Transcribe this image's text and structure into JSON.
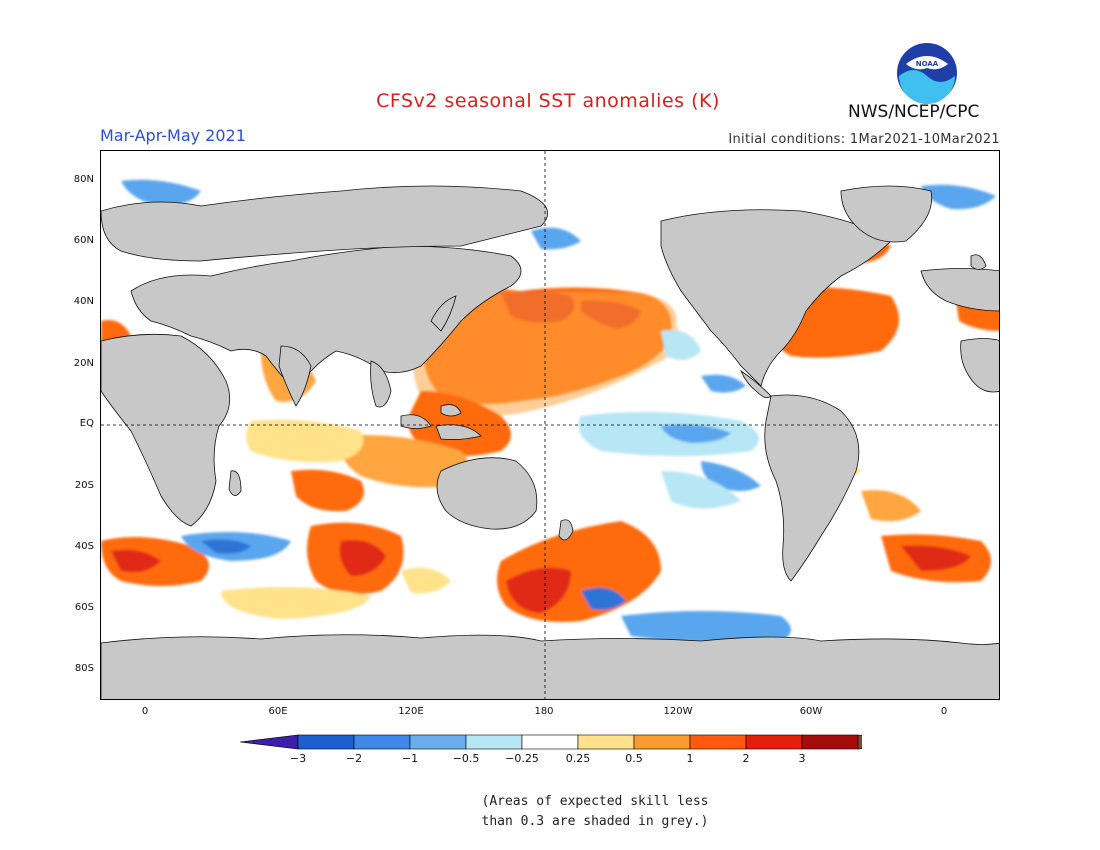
{
  "title": "CFSv2 seasonal SST anomalies (K)",
  "period": "Mar-Apr-May 2021",
  "initial_conditions": "Initial conditions: 1Mar2021-10Mar2021",
  "agency": "NWS/NCEP/CPC",
  "logo": {
    "icon": "noaa-logo",
    "text": "NOAA"
  },
  "lat_labels": [
    "80N",
    "60N",
    "40N",
    "20N",
    "EQ",
    "20S",
    "40S",
    "60S",
    "80S"
  ],
  "lon_labels": [
    "0",
    "60E",
    "120E",
    "180",
    "120W",
    "60W",
    "0"
  ],
  "colorbar": {
    "labels": [
      "-3",
      "-2",
      "-1",
      "-0.5",
      "-0.25",
      "0.25",
      "0.5",
      "1",
      "2",
      "3"
    ],
    "colors": [
      "#3b1fa8",
      "#1c5fd1",
      "#3d88e8",
      "#6aaef0",
      "#b7e6f5",
      "#ffffff",
      "#ffe28a",
      "#ff9a2e",
      "#ff5a0f",
      "#e51e0a",
      "#a50d0d",
      "#7a4a3a"
    ]
  },
  "map": {
    "land_color": "#c8c8c8",
    "masked_color": "#c8c8c8",
    "anomaly_colors": {
      "warm_strong": "#e02a12",
      "warm": "#ff6a10",
      "warm_light": "#ffa640",
      "warm_faint": "#ffe28a",
      "cool_faint": "#b7e6f5",
      "cool": "#5aa6ee",
      "cool_strong": "#2f73d6"
    }
  },
  "note": [
    "(Areas of expected skill less",
    "than 0.3 are shaded in grey.)"
  ]
}
